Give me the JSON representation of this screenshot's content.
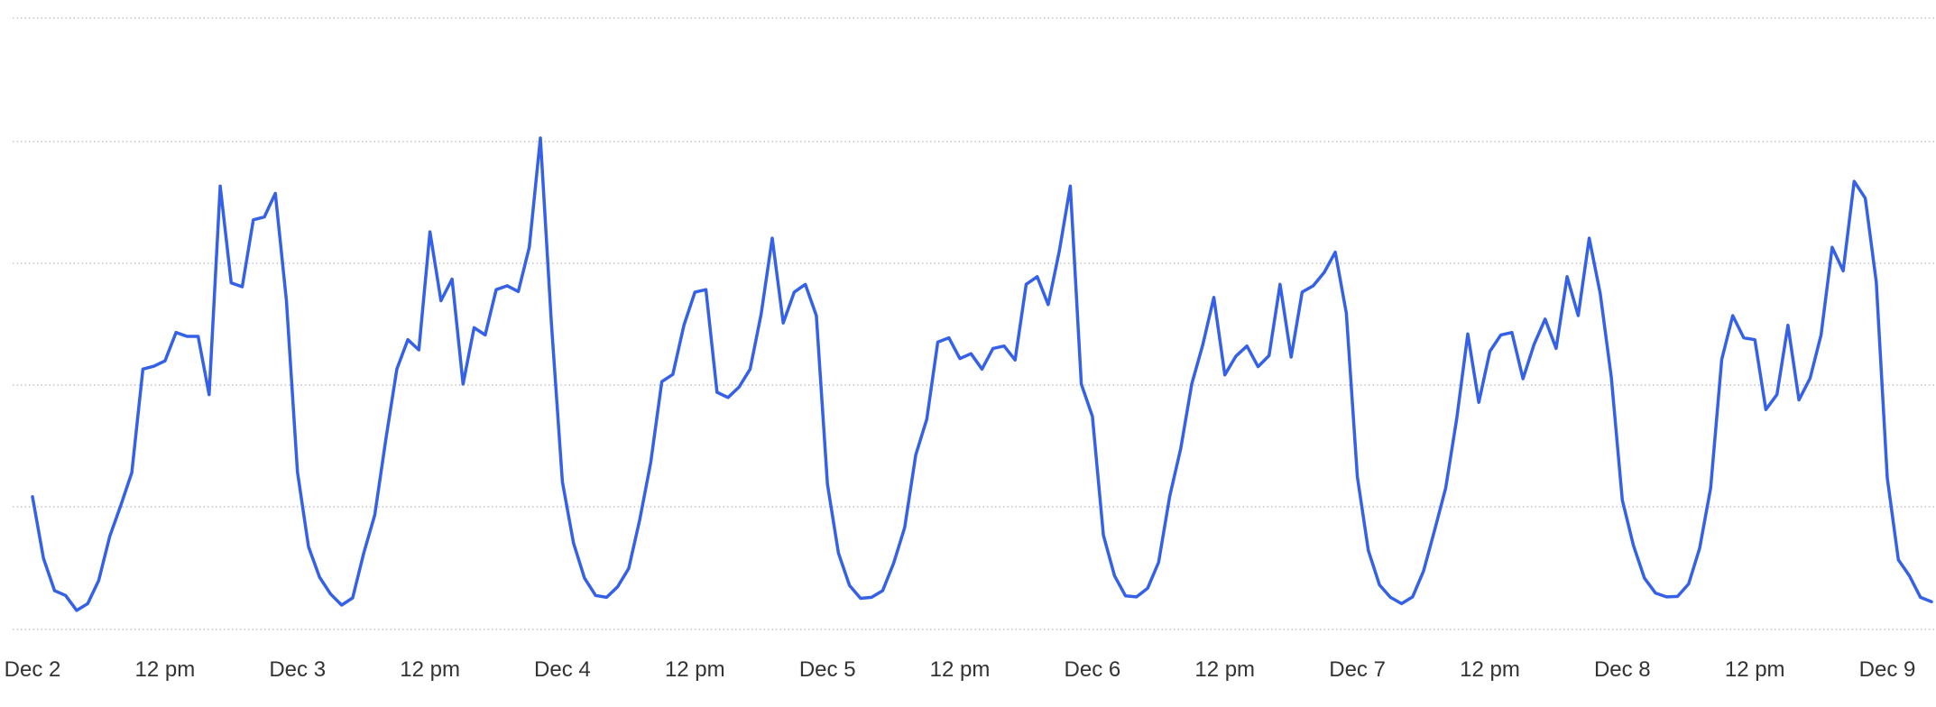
{
  "chart_data": {
    "type": "line",
    "title": "",
    "xlabel": "",
    "ylabel": "",
    "grid": true,
    "y_gridline_count": 6,
    "x_tick_labels": [
      "Dec 2",
      "12 pm",
      "Dec 3",
      "12 pm",
      "Dec 4",
      "12 pm",
      "Dec 5",
      "12 pm",
      "Dec 6",
      "12 pm",
      "Dec 7",
      "12 pm",
      "Dec 8",
      "12 pm",
      "Dec 9"
    ],
    "x_unit": "hours since Dec 2 00:00 (tick every 12 h)",
    "y_unit": "relative activity level (no axis printed)",
    "ylim": [
      0,
      100
    ],
    "series": [
      {
        "color": "#3561e8",
        "points": [
          [
            0,
            25.5
          ],
          [
            1,
            12.7
          ],
          [
            2,
            6.0
          ],
          [
            3,
            5.0
          ],
          [
            4,
            1.9
          ],
          [
            5,
            3.3
          ],
          [
            6,
            8.1
          ],
          [
            7,
            17.3
          ],
          [
            8,
            23.7
          ],
          [
            9,
            30.5
          ],
          [
            10,
            52.0
          ],
          [
            11,
            52.6
          ],
          [
            12,
            53.7
          ],
          [
            13,
            59.6
          ],
          [
            14,
            58.8
          ],
          [
            15,
            58.8
          ],
          [
            16,
            46.7
          ],
          [
            17,
            90.0
          ],
          [
            18,
            69.9
          ],
          [
            19,
            69.1
          ],
          [
            20,
            83.0
          ],
          [
            21,
            83.6
          ],
          [
            22,
            88.5
          ],
          [
            23,
            66.2
          ],
          [
            24,
            30.7
          ],
          [
            25,
            15.1
          ],
          [
            26,
            8.8
          ],
          [
            27,
            5.3
          ],
          [
            28,
            3.0
          ],
          [
            29,
            4.5
          ],
          [
            30,
            13.8
          ],
          [
            31,
            21.7
          ],
          [
            32,
            37.3
          ],
          [
            33,
            52.0
          ],
          [
            34,
            58.1
          ],
          [
            35,
            56.0
          ],
          [
            36,
            80.5
          ],
          [
            37,
            66.2
          ],
          [
            38,
            70.7
          ],
          [
            39,
            48.9
          ],
          [
            40,
            60.6
          ],
          [
            41,
            59.1
          ],
          [
            42,
            68.5
          ],
          [
            43,
            69.3
          ],
          [
            44,
            68.1
          ],
          [
            45,
            77.3
          ],
          [
            46,
            100.0
          ],
          [
            47,
            61.6
          ],
          [
            48,
            28.6
          ],
          [
            49,
            15.9
          ],
          [
            50,
            8.6
          ],
          [
            51,
            5.0
          ],
          [
            52,
            4.6
          ],
          [
            53,
            6.8
          ],
          [
            54,
            10.6
          ],
          [
            55,
            20.7
          ],
          [
            56,
            32.6
          ],
          [
            57,
            49.4
          ],
          [
            58,
            50.9
          ],
          [
            59,
            61.1
          ],
          [
            60,
            68.0
          ],
          [
            61,
            68.5
          ],
          [
            62,
            47.2
          ],
          [
            63,
            46.1
          ],
          [
            64,
            48.3
          ],
          [
            65,
            52.0
          ],
          [
            66,
            63.4
          ],
          [
            67,
            79.2
          ],
          [
            68,
            61.6
          ],
          [
            69,
            68.0
          ],
          [
            70,
            69.6
          ],
          [
            71,
            63.1
          ],
          [
            72,
            28.1
          ],
          [
            73,
            13.8
          ],
          [
            74,
            7.1
          ],
          [
            75,
            4.4
          ],
          [
            76,
            4.6
          ],
          [
            77,
            6.0
          ],
          [
            78,
            11.7
          ],
          [
            79,
            19.1
          ],
          [
            80,
            34.2
          ],
          [
            81,
            41.6
          ],
          [
            82,
            57.6
          ],
          [
            83,
            58.5
          ],
          [
            84,
            54.2
          ],
          [
            85,
            55.2
          ],
          [
            86,
            52.0
          ],
          [
            87,
            56.3
          ],
          [
            88,
            56.8
          ],
          [
            89,
            53.9
          ],
          [
            90,
            69.6
          ],
          [
            91,
            71.2
          ],
          [
            92,
            65.4
          ],
          [
            93,
            76.5
          ],
          [
            94,
            90.0
          ],
          [
            95,
            48.9
          ],
          [
            96,
            42.2
          ],
          [
            97,
            17.5
          ],
          [
            98,
            9.1
          ],
          [
            99,
            4.9
          ],
          [
            100,
            4.7
          ],
          [
            101,
            6.5
          ],
          [
            102,
            11.9
          ],
          [
            103,
            25.6
          ],
          [
            104,
            35.5
          ],
          [
            105,
            48.9
          ],
          [
            106,
            57.1
          ],
          [
            107,
            66.9
          ],
          [
            108,
            50.8
          ],
          [
            109,
            54.7
          ],
          [
            110,
            56.8
          ],
          [
            111,
            52.5
          ],
          [
            112,
            54.8
          ],
          [
            113,
            69.6
          ],
          [
            114,
            54.5
          ],
          [
            115,
            68.0
          ],
          [
            116,
            69.3
          ],
          [
            117,
            72.1
          ],
          [
            118,
            76.3
          ],
          [
            119,
            63.6
          ],
          [
            120,
            29.6
          ],
          [
            121,
            14.3
          ],
          [
            122,
            7.2
          ],
          [
            123,
            4.6
          ],
          [
            124,
            3.3
          ],
          [
            125,
            4.7
          ],
          [
            126,
            10.1
          ],
          [
            127,
            18.6
          ],
          [
            128,
            27.3
          ],
          [
            129,
            41.8
          ],
          [
            130,
            59.3
          ],
          [
            131,
            45.1
          ],
          [
            132,
            55.7
          ],
          [
            133,
            59.1
          ],
          [
            134,
            59.6
          ],
          [
            135,
            50.0
          ],
          [
            136,
            57.1
          ],
          [
            137,
            62.4
          ],
          [
            138,
            56.3
          ],
          [
            139,
            71.2
          ],
          [
            140,
            63.1
          ],
          [
            141,
            79.2
          ],
          [
            142,
            67.7
          ],
          [
            143,
            50.3
          ],
          [
            144,
            24.8
          ],
          [
            145,
            15.4
          ],
          [
            146,
            8.6
          ],
          [
            147,
            5.5
          ],
          [
            148,
            4.7
          ],
          [
            149,
            4.8
          ],
          [
            150,
            7.4
          ],
          [
            151,
            14.8
          ],
          [
            152,
            27.3
          ],
          [
            153,
            54.0
          ],
          [
            154,
            63.1
          ],
          [
            155,
            58.5
          ],
          [
            156,
            58.1
          ],
          [
            157,
            43.6
          ],
          [
            158,
            46.7
          ],
          [
            159,
            61.1
          ],
          [
            160,
            45.6
          ],
          [
            161,
            50.1
          ],
          [
            162,
            59.1
          ],
          [
            163,
            77.3
          ],
          [
            164,
            72.4
          ],
          [
            165,
            91.0
          ],
          [
            166,
            87.5
          ],
          [
            167,
            70.1
          ],
          [
            168,
            29.4
          ],
          [
            169,
            12.4
          ],
          [
            170,
            9.1
          ],
          [
            171,
            4.6
          ],
          [
            172,
            3.7
          ]
        ]
      }
    ],
    "x_range": [
      -3,
      173.5
    ]
  }
}
